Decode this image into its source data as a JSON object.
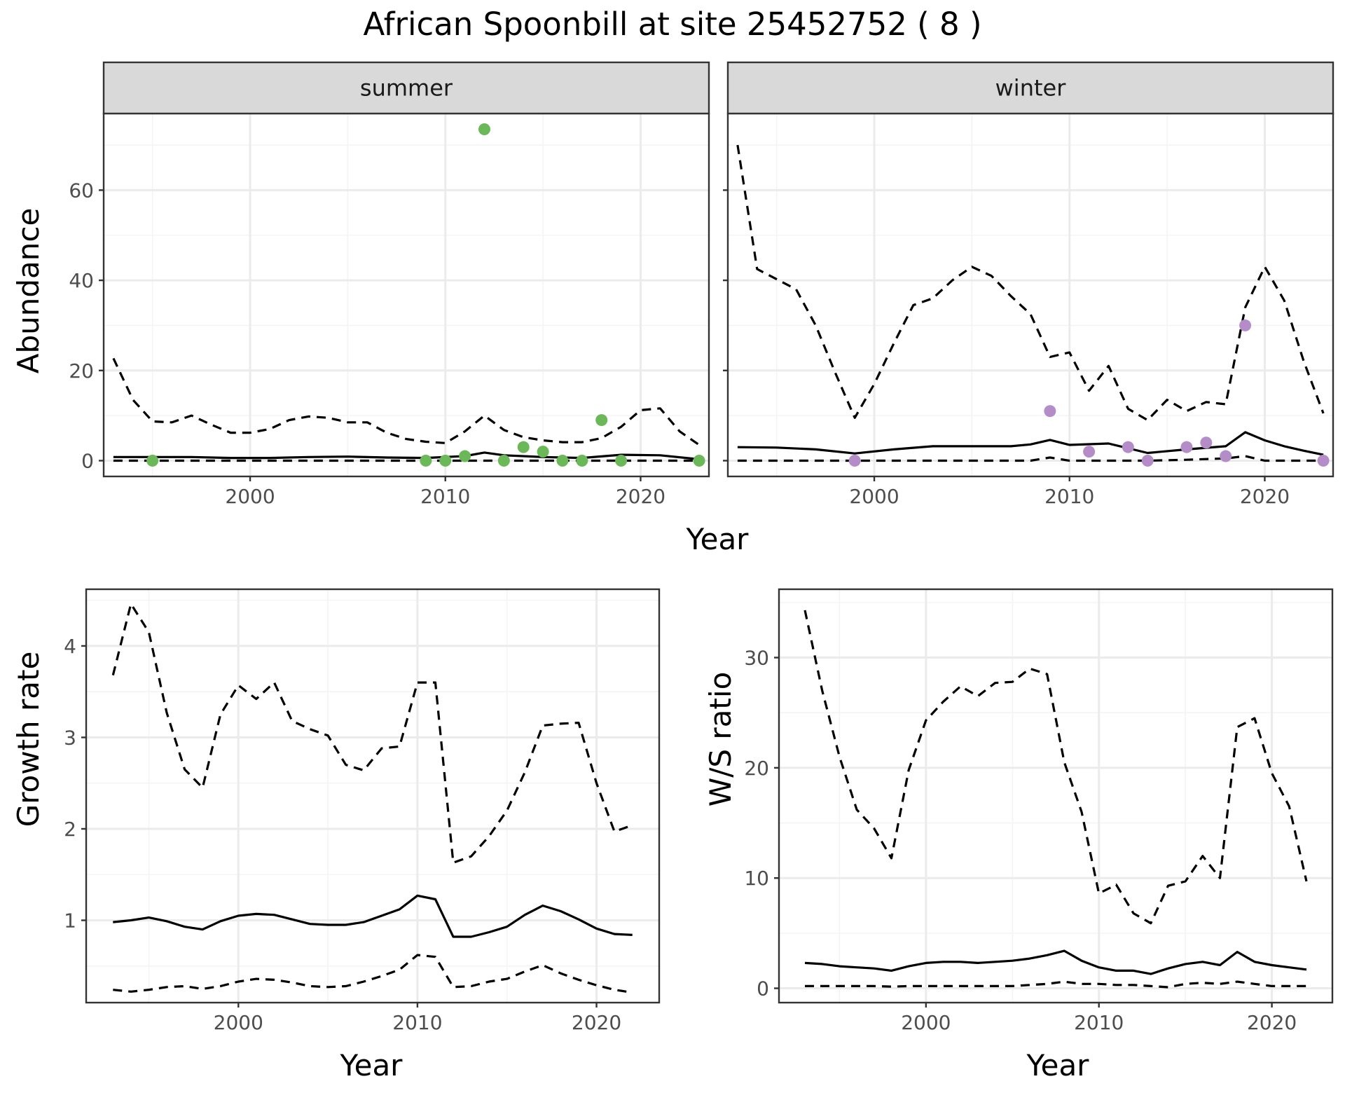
{
  "title": "African Spoonbill at site 25452752 ( 8 )",
  "colors": {
    "summer_points": "#6ab858",
    "winter_points": "#b48cc8",
    "line": "#000000",
    "grid_major": "#ebebeb",
    "grid_minor": "#f4f4f4",
    "strip_fill": "#d9d9d9",
    "panel_border": "#333333"
  },
  "chart_data": [
    {
      "panel": "summer",
      "type": "line",
      "strip": "summer",
      "ylabel": "Abundance",
      "xlabel": "Year",
      "xlim": [
        1992.5,
        2023.5
      ],
      "ylim": [
        -3.5,
        77
      ],
      "xticks": [
        2000,
        2010,
        2020
      ],
      "xtick_labels": [
        "2000",
        "2010",
        "2020"
      ],
      "yticks": [
        0,
        20,
        40,
        60
      ],
      "ytick_labels": [
        "0",
        "20",
        "40",
        "60"
      ],
      "series": [
        {
          "role": "mean",
          "style": "solid",
          "x": [
            1993,
            1995,
            1997,
            1999,
            2001,
            2003,
            2005,
            2007,
            2009,
            2011,
            2012,
            2013,
            2015,
            2017,
            2019,
            2021,
            2023
          ],
          "y": [
            0.8,
            0.8,
            0.8,
            0.6,
            0.6,
            0.8,
            0.9,
            0.7,
            0.6,
            1.0,
            1.8,
            1.2,
            0.8,
            0.6,
            1.3,
            1.2,
            0.3
          ]
        },
        {
          "role": "upper",
          "style": "dashed",
          "x": [
            1993,
            1994,
            1995,
            1996,
            1997,
            1998,
            1999,
            2000,
            2001,
            2002,
            2003,
            2004,
            2005,
            2006,
            2007,
            2008,
            2009,
            2010,
            2011,
            2012,
            2013,
            2014,
            2015,
            2016,
            2017,
            2018,
            2019,
            2020,
            2021,
            2022,
            2023
          ],
          "y": [
            22.7,
            13.5,
            8.7,
            8.5,
            10.0,
            8.0,
            6.2,
            6.2,
            7.0,
            9.0,
            9.8,
            9.5,
            8.5,
            8.5,
            6.2,
            4.8,
            4.2,
            3.9,
            6.5,
            10.0,
            6.8,
            5.2,
            4.5,
            4.1,
            4.1,
            5.0,
            7.5,
            11.2,
            11.6,
            6.5,
            3.5
          ]
        },
        {
          "role": "lower",
          "style": "dashed",
          "x": [
            1993,
            2000,
            2010,
            2020,
            2023
          ],
          "y": [
            0,
            0,
            0,
            0,
            0
          ]
        }
      ],
      "points": {
        "x": [
          1995,
          2009,
          2010,
          2011,
          2012,
          2013,
          2014,
          2015,
          2016,
          2017,
          2018,
          2019,
          2023
        ],
        "y": [
          0,
          0,
          0,
          1,
          73.5,
          0,
          3,
          2,
          0,
          0,
          9,
          0,
          0
        ]
      }
    },
    {
      "panel": "winter",
      "type": "line",
      "strip": "winter",
      "xlabel": "Year",
      "xlim": [
        1992.5,
        2023.5
      ],
      "ylim": [
        -3.5,
        77
      ],
      "xticks": [
        2000,
        2010,
        2020
      ],
      "xtick_labels": [
        "2000",
        "2010",
        "2020"
      ],
      "yticks": [
        0,
        20,
        40,
        60
      ],
      "series": [
        {
          "role": "mean",
          "style": "solid",
          "x": [
            1993,
            1995,
            1997,
            1999,
            2001,
            2003,
            2005,
            2007,
            2008,
            2009,
            2010,
            2012,
            2014,
            2016,
            2018,
            2019,
            2020,
            2021,
            2022,
            2023
          ],
          "y": [
            3.0,
            2.9,
            2.5,
            1.6,
            2.5,
            3.2,
            3.2,
            3.2,
            3.6,
            4.6,
            3.5,
            3.8,
            1.7,
            2.5,
            3.2,
            6.3,
            4.5,
            3.2,
            2.2,
            1.3
          ]
        },
        {
          "role": "upper",
          "style": "dashed",
          "x": [
            1993,
            1994,
            1996,
            1997,
            1998,
            1999,
            2000,
            2001,
            2002,
            2003,
            2004,
            2005,
            2006,
            2007,
            2008,
            2009,
            2010,
            2011,
            2012,
            2013,
            2014,
            2015,
            2016,
            2017,
            2018,
            2019,
            2020,
            2021,
            2022,
            2023
          ],
          "y": [
            70,
            42.5,
            38,
            30,
            19.5,
            9.5,
            17,
            26,
            34.5,
            36,
            40,
            43,
            41,
            36.5,
            32.5,
            23,
            24,
            15.5,
            21,
            11.5,
            9,
            13.5,
            11,
            13,
            12.5,
            34,
            43,
            35.5,
            22,
            10.5
          ]
        },
        {
          "role": "lower",
          "style": "dashed",
          "x": [
            1993,
            2008,
            2009,
            2010,
            2012,
            2014,
            2016,
            2018,
            2019,
            2020,
            2023
          ],
          "y": [
            0,
            0,
            0.7,
            0,
            0,
            0,
            0.2,
            0.5,
            1.0,
            0,
            0
          ]
        }
      ],
      "points": {
        "x": [
          1999,
          2009,
          2011,
          2013,
          2014,
          2016,
          2017,
          2018,
          2019,
          2023
        ],
        "y": [
          0,
          11,
          2,
          3,
          0,
          3,
          4,
          1,
          30,
          0
        ]
      }
    },
    {
      "panel": "growth",
      "type": "line",
      "ylabel": "Growth rate",
      "xlabel": "Year",
      "xlim": [
        1991.5,
        2023.5
      ],
      "ylim": [
        0.1,
        4.62
      ],
      "xticks": [
        2000,
        2010,
        2020
      ],
      "xtick_labels": [
        "2000",
        "2010",
        "2020"
      ],
      "yticks": [
        1,
        2,
        3,
        4
      ],
      "ytick_labels": [
        "1",
        "2",
        "3",
        "4"
      ],
      "series": [
        {
          "role": "mean",
          "style": "solid",
          "x": [
            1993,
            1994,
            1995,
            1996,
            1997,
            1998,
            1999,
            2000,
            2001,
            2002,
            2003,
            2004,
            2005,
            2006,
            2007,
            2008,
            2009,
            2010,
            2011,
            2012,
            2013,
            2014,
            2015,
            2016,
            2017,
            2018,
            2019,
            2020,
            2021,
            2022
          ],
          "y": [
            0.98,
            1.0,
            1.03,
            0.99,
            0.93,
            0.9,
            0.99,
            1.05,
            1.07,
            1.06,
            1.01,
            0.96,
            0.95,
            0.95,
            0.98,
            1.05,
            1.12,
            1.27,
            1.23,
            0.82,
            0.82,
            0.87,
            0.93,
            1.06,
            1.16,
            1.1,
            1.01,
            0.91,
            0.85,
            0.84
          ]
        },
        {
          "role": "upper",
          "style": "dashed",
          "x": [
            1993,
            1994,
            1995,
            1996,
            1997,
            1998,
            1999,
            2000,
            2001,
            2002,
            2003,
            2004,
            2005,
            2006,
            2007,
            2008,
            2009,
            2010,
            2011,
            2012,
            2013,
            2014,
            2015,
            2016,
            2017,
            2018,
            2019,
            2020,
            2021,
            2022
          ],
          "y": [
            3.68,
            4.46,
            4.15,
            3.27,
            2.65,
            2.45,
            3.25,
            3.57,
            3.42,
            3.6,
            3.18,
            3.09,
            3.02,
            2.7,
            2.64,
            2.88,
            2.9,
            3.6,
            3.6,
            1.63,
            1.7,
            1.92,
            2.2,
            2.62,
            3.13,
            3.15,
            3.16,
            2.5,
            1.97,
            2.04
          ]
        },
        {
          "role": "lower",
          "style": "dashed",
          "x": [
            1993,
            1994,
            1995,
            1996,
            1997,
            1998,
            1999,
            2000,
            2001,
            2002,
            2003,
            2004,
            2005,
            2006,
            2007,
            2008,
            2009,
            2010,
            2011,
            2012,
            2013,
            2014,
            2015,
            2016,
            2017,
            2018,
            2019,
            2020,
            2021,
            2022
          ],
          "y": [
            0.24,
            0.22,
            0.24,
            0.27,
            0.28,
            0.25,
            0.28,
            0.33,
            0.36,
            0.35,
            0.32,
            0.28,
            0.27,
            0.28,
            0.33,
            0.39,
            0.46,
            0.62,
            0.6,
            0.27,
            0.28,
            0.33,
            0.36,
            0.44,
            0.51,
            0.42,
            0.35,
            0.29,
            0.24,
            0.21
          ]
        }
      ]
    },
    {
      "panel": "ws_ratio",
      "type": "line",
      "ylabel": "W/S ratio",
      "xlabel": "Year",
      "xlim": [
        1991.5,
        2023.5
      ],
      "ylim": [
        -1.3,
        36.2
      ],
      "xticks": [
        2000,
        2010,
        2020
      ],
      "xtick_labels": [
        "2000",
        "2010",
        "2020"
      ],
      "yticks": [
        0,
        10,
        20,
        30
      ],
      "ytick_labels": [
        "0",
        "10",
        "20",
        "30"
      ],
      "series": [
        {
          "role": "mean",
          "style": "solid",
          "x": [
            1993,
            1994,
            1995,
            1996,
            1997,
            1998,
            1999,
            2000,
            2001,
            2002,
            2003,
            2004,
            2005,
            2006,
            2007,
            2008,
            2009,
            2010,
            2011,
            2012,
            2013,
            2014,
            2015,
            2016,
            2017,
            2018,
            2019,
            2020,
            2021,
            2022
          ],
          "y": [
            2.3,
            2.2,
            2.0,
            1.9,
            1.8,
            1.6,
            2.0,
            2.3,
            2.4,
            2.4,
            2.3,
            2.4,
            2.5,
            2.7,
            3.0,
            3.4,
            2.5,
            1.9,
            1.6,
            1.6,
            1.3,
            1.8,
            2.2,
            2.4,
            2.1,
            3.3,
            2.4,
            2.1,
            1.9,
            1.7
          ]
        },
        {
          "role": "upper",
          "style": "dashed",
          "x": [
            1993,
            1994,
            1995,
            1996,
            1997,
            1998,
            1999,
            2000,
            2001,
            2002,
            2003,
            2004,
            2005,
            2006,
            2007,
            2008,
            2009,
            2010,
            2011,
            2012,
            2013,
            2014,
            2015,
            2016,
            2017,
            2018,
            2019,
            2020,
            2021,
            2022
          ],
          "y": [
            34.3,
            27,
            21,
            16.2,
            14.5,
            11.8,
            19.8,
            24.3,
            26,
            27.4,
            26.5,
            27.7,
            27.8,
            29,
            28.5,
            20.5,
            16,
            8.6,
            9.4,
            6.8,
            5.9,
            9.3,
            9.7,
            12,
            10,
            23.7,
            24.5,
            19.5,
            16.5,
            9.7
          ]
        },
        {
          "role": "lower",
          "style": "dashed",
          "x": [
            1993,
            1994,
            1995,
            1996,
            1997,
            1998,
            1999,
            2000,
            2001,
            2002,
            2003,
            2004,
            2005,
            2006,
            2007,
            2008,
            2009,
            2010,
            2011,
            2012,
            2013,
            2014,
            2015,
            2016,
            2017,
            2018,
            2019,
            2020,
            2021,
            2022
          ],
          "y": [
            0.2,
            0.2,
            0.2,
            0.2,
            0.2,
            0.15,
            0.2,
            0.2,
            0.2,
            0.2,
            0.2,
            0.2,
            0.2,
            0.3,
            0.4,
            0.6,
            0.4,
            0.4,
            0.3,
            0.3,
            0.2,
            0.1,
            0.4,
            0.5,
            0.4,
            0.6,
            0.4,
            0.2,
            0.2,
            0.2
          ]
        }
      ]
    }
  ]
}
